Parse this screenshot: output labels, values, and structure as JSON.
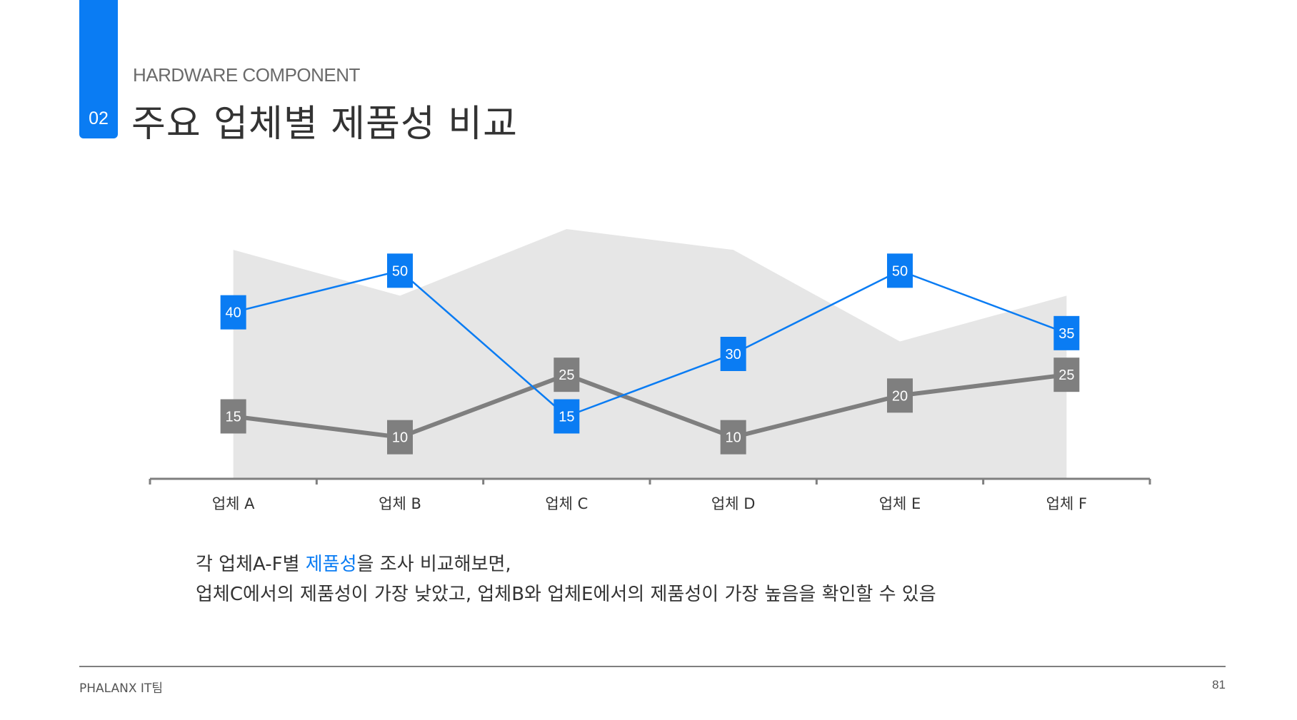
{
  "header": {
    "section_number": "02",
    "subtitle": "HARDWARE COMPONENT",
    "title": "주요 업체별 제품성 비교"
  },
  "colors": {
    "accent": "#0a7cf3",
    "gray_series": "#7f7f7f",
    "area_fill": "#e6e6e6",
    "axis": "#7f7f7f"
  },
  "chart_data": {
    "type": "line",
    "categories": [
      "업체 A",
      "업체 B",
      "업체 C",
      "업체 D",
      "업체 E",
      "업체 F"
    ],
    "series": [
      {
        "values": [
          40,
          50,
          15,
          30,
          50,
          35
        ],
        "color": "#0a7cf3",
        "style": "line with labeled square markers"
      },
      {
        "values": [
          15,
          10,
          25,
          10,
          20,
          25
        ],
        "color": "#7f7f7f",
        "style": "thick line with labeled square markers"
      }
    ],
    "background_area": {
      "values": [
        55,
        44,
        60,
        55,
        33,
        44
      ],
      "color": "#e6e6e6"
    },
    "ylim": [
      0,
      60
    ],
    "grid": false,
    "legend": "none",
    "title": "",
    "xlabel": "",
    "ylabel": ""
  },
  "caption": {
    "line1_before": "각 업체A-F별 ",
    "line1_highlight": "제품성",
    "line1_after": "을 조사 비교해보면,",
    "line2": "업체C에서의 제품성이 가장 낮았고, 업체B와 업체E에서의 제품성이 가장 높음을 확인할 수 있음"
  },
  "footer": {
    "team": "PHALANX IT팀",
    "page_number": "81"
  }
}
